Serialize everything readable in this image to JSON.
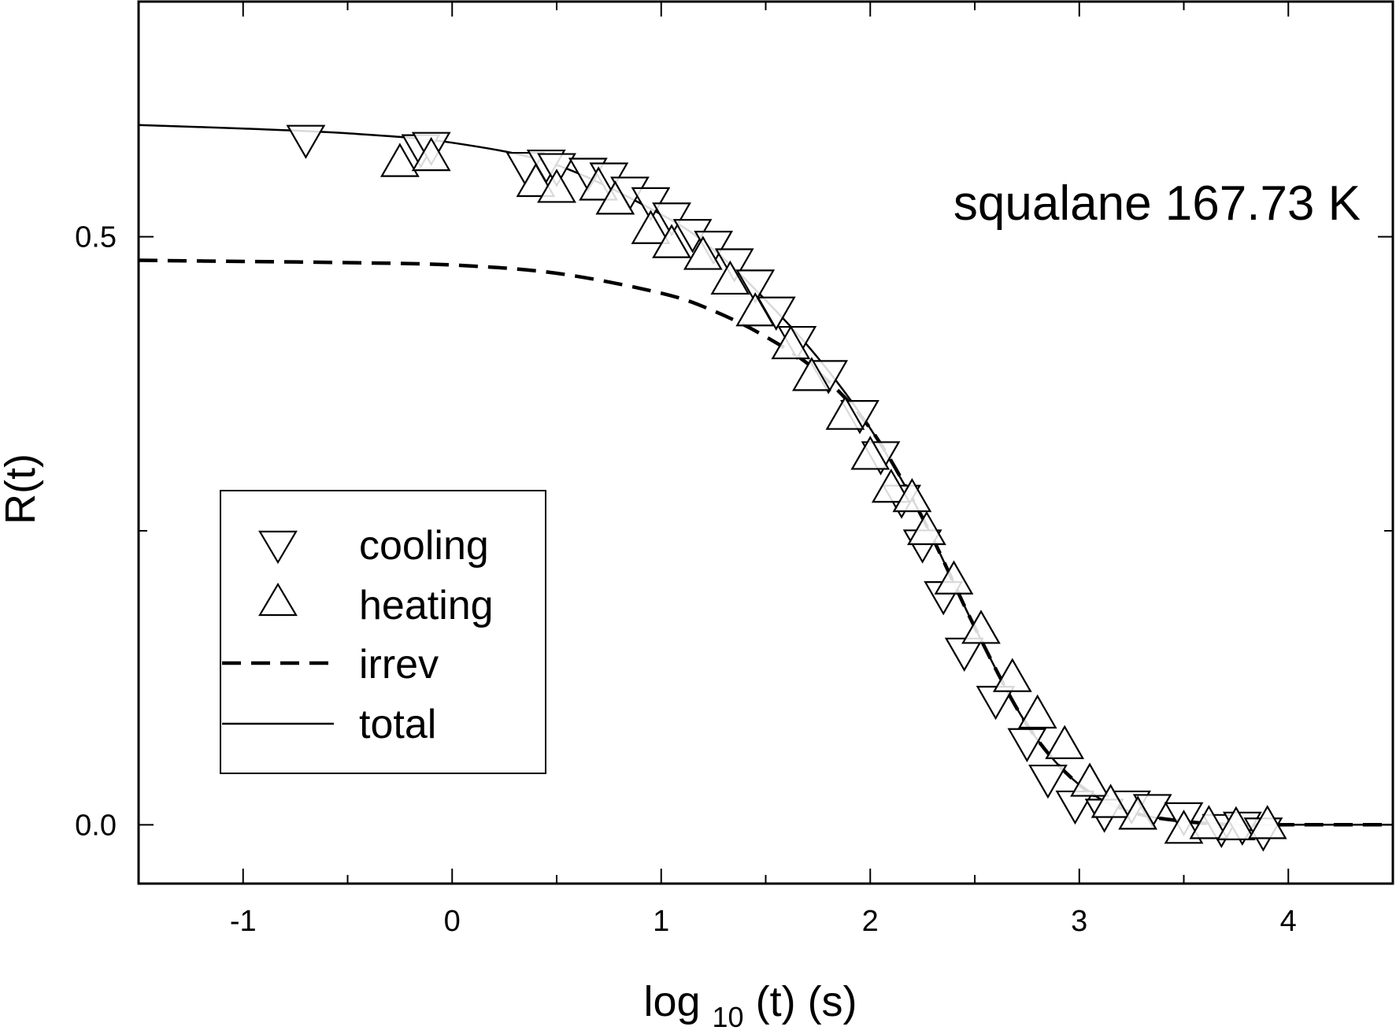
{
  "chart_data": {
    "type": "scatter",
    "annotation": "squalane 167.73 K",
    "xlabel": {
      "prefix": "log",
      "subscript": "10",
      "suffix": "(t) (s)"
    },
    "ylabel": "R(t)",
    "xlim": [
      -1.5,
      4.5
    ],
    "ylim": [
      -0.05,
      0.7
    ],
    "x_ticks": [
      -1,
      0,
      1,
      2,
      3,
      4
    ],
    "x_tick_labels": [
      "-1",
      "0",
      "1",
      "2",
      "3",
      "4"
    ],
    "x_minor_ticks": [
      -0.5,
      0.5,
      1.5,
      2.5,
      3.5
    ],
    "y_ticks": [
      0.0,
      0.5
    ],
    "y_tick_labels": [
      "0.0",
      "0.5"
    ],
    "y_minor_ticks": [
      0.25
    ],
    "grid": false,
    "legend_position": "left-middle",
    "legend": [
      {
        "label": "cooling",
        "marker": "triangle-down"
      },
      {
        "label": "heating",
        "marker": "triangle-up"
      },
      {
        "label": "irrev",
        "style": "dashed"
      },
      {
        "label": "total",
        "style": "solid"
      }
    ],
    "series": [
      {
        "name": "cooling",
        "marker": "triangle-down",
        "points": [
          [
            -0.7,
            0.581
          ],
          [
            -0.15,
            0.573
          ],
          [
            -0.1,
            0.575
          ],
          [
            0.35,
            0.558
          ],
          [
            0.45,
            0.56
          ],
          [
            0.5,
            0.557
          ],
          [
            0.65,
            0.553
          ],
          [
            0.75,
            0.549
          ],
          [
            0.85,
            0.537
          ],
          [
            0.95,
            0.528
          ],
          [
            1.05,
            0.515
          ],
          [
            1.15,
            0.501
          ],
          [
            1.25,
            0.491
          ],
          [
            1.35,
            0.476
          ],
          [
            1.45,
            0.458
          ],
          [
            1.55,
            0.435
          ],
          [
            1.65,
            0.41
          ],
          [
            1.8,
            0.381
          ],
          [
            1.95,
            0.347
          ],
          [
            2.05,
            0.312
          ],
          [
            2.15,
            0.275
          ],
          [
            2.25,
            0.237
          ],
          [
            2.35,
            0.193
          ],
          [
            2.45,
            0.145
          ],
          [
            2.6,
            0.104
          ],
          [
            2.75,
            0.068
          ],
          [
            2.85,
            0.037
          ],
          [
            2.98,
            0.015
          ],
          [
            3.12,
            0.008
          ],
          [
            3.25,
            0.015
          ],
          [
            3.35,
            0.012
          ],
          [
            3.5,
            0.005
          ],
          [
            3.68,
            -0.005
          ],
          [
            3.78,
            -0.003
          ],
          [
            3.88,
            -0.008
          ]
        ]
      },
      {
        "name": "heating",
        "marker": "triangle-up",
        "points": [
          [
            -0.25,
            0.565
          ],
          [
            -0.1,
            0.57
          ],
          [
            0.4,
            0.548
          ],
          [
            0.5,
            0.543
          ],
          [
            0.7,
            0.545
          ],
          [
            0.78,
            0.533
          ],
          [
            0.95,
            0.508
          ],
          [
            1.05,
            0.496
          ],
          [
            1.2,
            0.486
          ],
          [
            1.33,
            0.465
          ],
          [
            1.45,
            0.438
          ],
          [
            1.62,
            0.41
          ],
          [
            1.72,
            0.383
          ],
          [
            1.88,
            0.35
          ],
          [
            2.0,
            0.316
          ],
          [
            2.1,
            0.288
          ],
          [
            2.2,
            0.28
          ],
          [
            2.27,
            0.252
          ],
          [
            2.4,
            0.21
          ],
          [
            2.53,
            0.168
          ],
          [
            2.68,
            0.127
          ],
          [
            2.8,
            0.096
          ],
          [
            2.93,
            0.07
          ],
          [
            3.05,
            0.038
          ],
          [
            3.15,
            0.02
          ],
          [
            3.28,
            0.01
          ],
          [
            3.5,
            -0.002
          ],
          [
            3.62,
            0.002
          ],
          [
            3.75,
            0.001
          ],
          [
            3.9,
            0.002
          ]
        ]
      }
    ],
    "curves": [
      {
        "name": "irrev",
        "style": "dashed",
        "points": [
          [
            -1.5,
            0.48
          ],
          [
            -1.0,
            0.479
          ],
          [
            -0.5,
            0.478
          ],
          [
            0.0,
            0.476
          ],
          [
            0.5,
            0.469
          ],
          [
            1.0,
            0.452
          ],
          [
            1.25,
            0.437
          ],
          [
            1.5,
            0.415
          ],
          [
            1.75,
            0.385
          ],
          [
            2.0,
            0.337
          ],
          [
            2.25,
            0.261
          ],
          [
            2.5,
            0.168
          ],
          [
            2.75,
            0.085
          ],
          [
            3.0,
            0.034
          ],
          [
            3.25,
            0.011
          ],
          [
            3.5,
            0.003
          ],
          [
            3.75,
            0.0
          ],
          [
            4.0,
            0.0
          ],
          [
            4.5,
            0.0
          ]
        ]
      },
      {
        "name": "total",
        "style": "solid",
        "points": [
          [
            -1.5,
            0.595
          ],
          [
            -1.0,
            0.592
          ],
          [
            -0.5,
            0.588
          ],
          [
            0.0,
            0.58
          ],
          [
            0.5,
            0.561
          ],
          [
            1.0,
            0.519
          ],
          [
            1.25,
            0.489
          ],
          [
            1.5,
            0.446
          ],
          [
            1.75,
            0.397
          ],
          [
            2.0,
            0.337
          ],
          [
            2.25,
            0.261
          ],
          [
            2.5,
            0.168
          ],
          [
            2.75,
            0.085
          ],
          [
            3.0,
            0.034
          ],
          [
            3.25,
            0.011
          ],
          [
            3.5,
            0.003
          ],
          [
            3.75,
            0.0
          ],
          [
            4.0,
            0.0
          ],
          [
            4.5,
            0.0
          ]
        ]
      }
    ]
  }
}
